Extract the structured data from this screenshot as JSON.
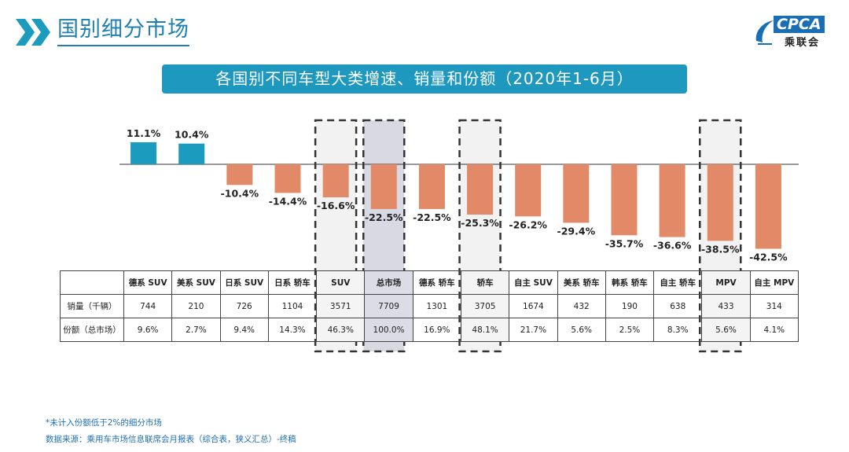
{
  "header": {
    "title": "国别细分市场",
    "logo_text": "CPCA",
    "logo_sub": "乘联会"
  },
  "chart_title": "各国别不同车型大类增速、销量和份额（2020年1-6月）",
  "chart_data": {
    "type": "bar",
    "title": "各国别不同车型大类增速、销量和份额（2020年1-6月）",
    "categories": [
      "德系 SUV",
      "美系 SUV",
      "日系 SUV",
      "日系 轿车",
      "SUV",
      "总市场",
      "德系 轿车",
      "轿车",
      "自主 SUV",
      "美系 轿车",
      "韩系 轿车",
      "自主 轿车",
      "MPV",
      "自主 MPV"
    ],
    "values": [
      11.1,
      10.4,
      -10.4,
      -14.4,
      -16.6,
      -22.5,
      -22.5,
      -25.3,
      -26.2,
      -29.4,
      -35.7,
      -36.6,
      -38.5,
      -42.5
    ],
    "value_labels": [
      "11.1%",
      "10.4%",
      "-10.4%",
      "-14.4%",
      "-16.6%",
      "-22.5%",
      "-22.5%",
      "-25.3%",
      "-26.2%",
      "-29.4%",
      "-35.7%",
      "-36.6%",
      "-38.5%",
      "-42.5%"
    ],
    "unit": "%",
    "ylim": [
      -45,
      13
    ],
    "highlighted": [
      "SUV",
      "总市场",
      "轿车",
      "MPV"
    ],
    "colors": {
      "positive": "#1b9cbe",
      "negative": "#e28a67",
      "total_band": "#d9d9e3",
      "highlight_band": "#f2f2f2"
    }
  },
  "table": {
    "row_labels": [
      "销量（千辆）",
      "份额（总市场）"
    ],
    "sales": [
      "744",
      "210",
      "726",
      "1104",
      "3571",
      "7709",
      "1301",
      "3705",
      "1674",
      "432",
      "190",
      "638",
      "433",
      "314"
    ],
    "shares": [
      "9.6%",
      "2.7%",
      "9.4%",
      "14.3%",
      "46.3%",
      "100.0%",
      "16.9%",
      "48.1%",
      "21.7%",
      "5.6%",
      "2.5%",
      "8.3%",
      "5.6%",
      "4.1%"
    ]
  },
  "footnotes": {
    "note": "*未计入份额低于2%的细分市场",
    "source": "数据来源：乘用车市场信息联席会月报表（综合表，狭义汇总）-终稿"
  }
}
